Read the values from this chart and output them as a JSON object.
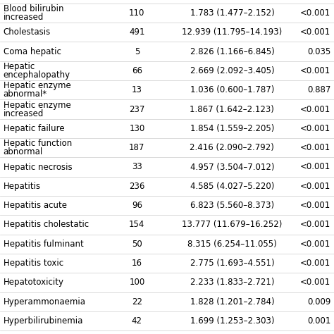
{
  "rows": [
    {
      "term": "Blood bilirubin\nincreased",
      "n": "110",
      "ror": "1.783 (1.477–2.152)",
      "p": "<0.001"
    },
    {
      "term": "Cholestasis",
      "n": "491",
      "ror": "12.939 (11.795–14.193)",
      "p": "<0.001"
    },
    {
      "term": "Coma hepatic",
      "n": "5",
      "ror": "2.826 (1.166–6.845)",
      "p": "0.035"
    },
    {
      "term": "Hepatic\nencephalopathy",
      "n": "66",
      "ror": "2.669 (2.092–3.405)",
      "p": "<0.001"
    },
    {
      "term": "Hepatic enzyme\nabnormal*",
      "n": "13",
      "ror": "1.036 (0.600–1.787)",
      "p": "0.887"
    },
    {
      "term": "Hepatic enzyme\nincreased",
      "n": "237",
      "ror": "1.867 (1.642–2.123)",
      "p": "<0.001"
    },
    {
      "term": "Hepatic failure",
      "n": "130",
      "ror": "1.854 (1.559–2.205)",
      "p": "<0.001"
    },
    {
      "term": "Hepatic function\nabnormal",
      "n": "187",
      "ror": "2.416 (2.090–2.792)",
      "p": "<0.001"
    },
    {
      "term": "Hepatic necrosis",
      "n": "33",
      "ror": "4.957 (3.504–7.012)",
      "p": "<0.001"
    },
    {
      "term": "Hepatitis",
      "n": "236",
      "ror": "4.585 (4.027–5.220)",
      "p": "<0.001"
    },
    {
      "term": "Hepatitis acute",
      "n": "96",
      "ror": "6.823 (5.560–8.373)",
      "p": "<0.001"
    },
    {
      "term": "Hepatitis cholestatic",
      "n": "154",
      "ror": "13.777 (11.679–16.252)",
      "p": "<0.001"
    },
    {
      "term": "Hepatitis fulminant",
      "n": "50",
      "ror": "8.315 (6.254–11.055)",
      "p": "<0.001"
    },
    {
      "term": "Hepatitis toxic",
      "n": "16",
      "ror": "2.775 (1.693–4.551)",
      "p": "<0.001"
    },
    {
      "term": "Hepatotoxicity",
      "n": "100",
      "ror": "2.233 (1.833–2.721)",
      "p": "<0.001"
    },
    {
      "term": "Hyperammonaemia",
      "n": "22",
      "ror": "1.828 (1.201–2.784)",
      "p": "0.009"
    },
    {
      "term": "Hyperbilirubinemia",
      "n": "42",
      "ror": "1.699 (1.253–2.303)",
      "p": "0.001"
    }
  ],
  "bg_color": "#ffffff",
  "text_color": "#000000",
  "font_size": 8.5,
  "line_color": "#cccccc"
}
